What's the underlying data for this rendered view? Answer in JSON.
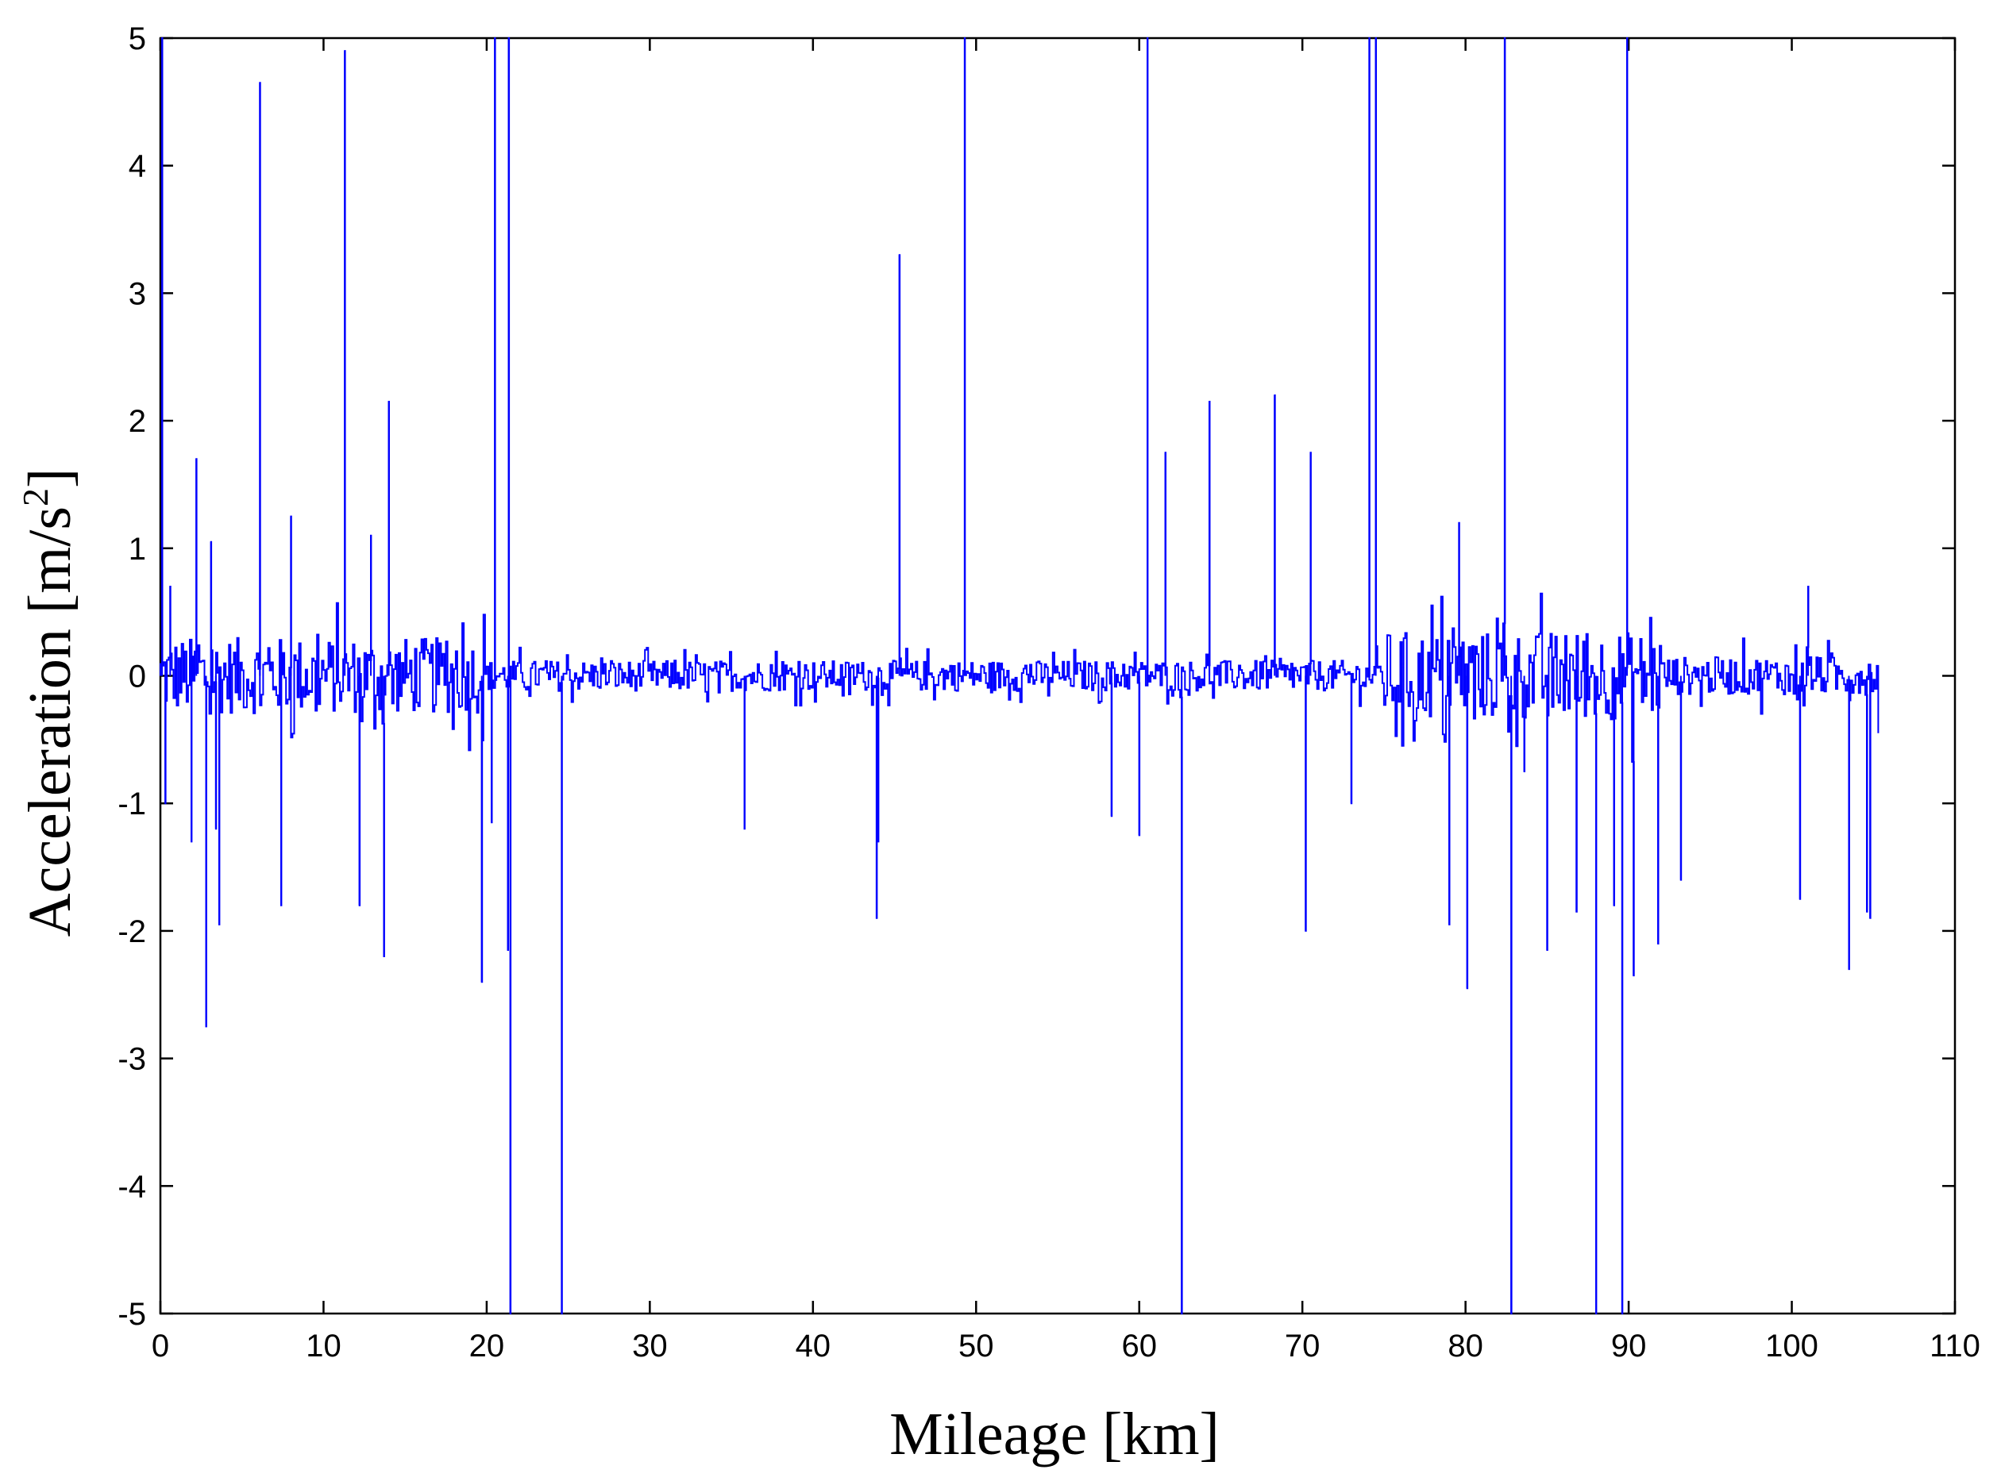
{
  "chart_data": {
    "type": "line",
    "xlabel": "Mileage [km]",
    "ylabel_text": "Acceleration [m/s",
    "ylabel_sup": "2",
    "ylabel_close": "]",
    "xlim": [
      0,
      110
    ],
    "ylim": [
      -5,
      5
    ],
    "xticks": [
      0,
      10,
      20,
      30,
      40,
      50,
      60,
      70,
      80,
      90,
      100,
      110
    ],
    "yticks": [
      -5,
      -4,
      -3,
      -2,
      -1,
      0,
      1,
      2,
      3,
      4,
      5
    ],
    "grid": false,
    "series": [
      {
        "color": "#0000ff",
        "x_start": 0,
        "x_end": 105.3,
        "baseline_noise": [
          {
            "x_from": 0,
            "x_to": 20,
            "amplitude": 0.3
          },
          {
            "x_from": 20,
            "x_to": 60,
            "amplitude": 0.12
          },
          {
            "x_from": 60,
            "x_to": 75,
            "amplitude": 0.12
          },
          {
            "x_from": 75,
            "x_to": 92,
            "amplitude": 0.35
          },
          {
            "x_from": 92,
            "x_to": 105.3,
            "amplitude": 0.15
          }
        ],
        "spikes": [
          {
            "x": 0.1,
            "y": 5.0
          },
          {
            "x": 0.3,
            "y": -1.0
          },
          {
            "x": 0.6,
            "y": 0.7
          },
          {
            "x": 1.9,
            "y": -1.3
          },
          {
            "x": 2.2,
            "y": 1.7
          },
          {
            "x": 2.8,
            "y": -2.75
          },
          {
            "x": 3.1,
            "y": 1.05
          },
          {
            "x": 3.4,
            "y": -1.2
          },
          {
            "x": 3.6,
            "y": -1.95
          },
          {
            "x": 6.1,
            "y": 4.65
          },
          {
            "x": 7.4,
            "y": -1.8
          },
          {
            "x": 8.0,
            "y": 1.25
          },
          {
            "x": 11.3,
            "y": 4.9
          },
          {
            "x": 12.2,
            "y": -1.8
          },
          {
            "x": 12.9,
            "y": 1.1
          },
          {
            "x": 13.7,
            "y": -2.2
          },
          {
            "x": 14.0,
            "y": 2.15
          },
          {
            "x": 19.7,
            "y": -2.4
          },
          {
            "x": 20.3,
            "y": -1.15
          },
          {
            "x": 20.5,
            "y": 5.0
          },
          {
            "x": 21.3,
            "y": -2.15
          },
          {
            "x": 21.35,
            "y": 5.0
          },
          {
            "x": 21.45,
            "y": -5.0
          },
          {
            "x": 24.6,
            "y": -5.0
          },
          {
            "x": 35.8,
            "y": -1.2
          },
          {
            "x": 43.9,
            "y": -1.9
          },
          {
            "x": 44.0,
            "y": -1.3
          },
          {
            "x": 45.3,
            "y": 3.3
          },
          {
            "x": 49.3,
            "y": 5.0
          },
          {
            "x": 58.3,
            "y": -1.1
          },
          {
            "x": 60.0,
            "y": -1.25
          },
          {
            "x": 60.5,
            "y": 5.0
          },
          {
            "x": 61.6,
            "y": 1.75
          },
          {
            "x": 62.6,
            "y": -5.0
          },
          {
            "x": 64.3,
            "y": 2.15
          },
          {
            "x": 68.3,
            "y": 2.2
          },
          {
            "x": 70.2,
            "y": -2.0
          },
          {
            "x": 70.5,
            "y": 1.75
          },
          {
            "x": 73.0,
            "y": -1.0
          },
          {
            "x": 74.1,
            "y": 5.0
          },
          {
            "x": 74.5,
            "y": 5.0
          },
          {
            "x": 79.0,
            "y": -1.95
          },
          {
            "x": 79.6,
            "y": 1.2
          },
          {
            "x": 80.1,
            "y": -2.45
          },
          {
            "x": 82.4,
            "y": 5.0
          },
          {
            "x": 82.8,
            "y": -5.0
          },
          {
            "x": 83.6,
            "y": -0.75
          },
          {
            "x": 85.0,
            "y": -2.15
          },
          {
            "x": 86.8,
            "y": -1.85
          },
          {
            "x": 88.0,
            "y": -5.0
          },
          {
            "x": 89.1,
            "y": -1.8
          },
          {
            "x": 89.6,
            "y": -5.0
          },
          {
            "x": 89.9,
            "y": 5.0
          },
          {
            "x": 90.3,
            "y": -2.35
          },
          {
            "x": 91.8,
            "y": -2.1
          },
          {
            "x": 93.2,
            "y": -1.6
          },
          {
            "x": 100.5,
            "y": -1.75
          },
          {
            "x": 101.0,
            "y": 0.7
          },
          {
            "x": 103.5,
            "y": -2.3
          },
          {
            "x": 104.6,
            "y": -1.85
          },
          {
            "x": 104.8,
            "y": -1.9
          }
        ]
      }
    ]
  }
}
